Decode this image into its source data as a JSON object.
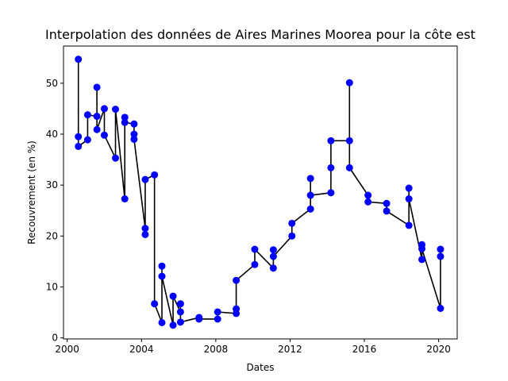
{
  "chart_data": {
    "type": "line",
    "title": "Interpolation des données de Aires Marines Moorea pour la côte est",
    "xlabel": "Dates",
    "ylabel": "Recouvrement (en %)",
    "xlim": [
      1999.8,
      2021.0
    ],
    "ylim": [
      -0.2,
      57.3
    ],
    "xticks": [
      2000,
      2004,
      2008,
      2012,
      2016,
      2020
    ],
    "yticks": [
      0,
      10,
      20,
      30,
      40,
      50
    ],
    "grid": false,
    "line_color": "#000000",
    "marker_color": "#0000ff",
    "series": [
      {
        "x": [
          2000.6,
          2000.6,
          2000.6,
          2001.1,
          2001.1,
          2001.6,
          2001.6,
          2001.6,
          2002.0,
          2002.0,
          2002.6,
          2002.6,
          2003.1,
          2003.1,
          2003.1,
          2003.6,
          2003.6,
          2003.6,
          2004.2,
          2004.2,
          2004.2,
          2004.7,
          2004.7,
          2005.1,
          2005.1,
          2005.1,
          2005.7,
          2005.7,
          2006.1,
          2006.1,
          2006.1,
          2007.1,
          2007.1,
          2008.1,
          2008.1,
          2009.1,
          2009.1,
          2009.1,
          2010.1,
          2010.1,
          2011.1,
          2011.1,
          2011.1,
          2012.1,
          2012.1,
          2013.1,
          2013.1,
          2013.1,
          2014.2,
          2014.2,
          2014.2,
          2015.2,
          2015.2,
          2015.2,
          2016.2,
          2016.2,
          2017.2,
          2017.2,
          2018.4,
          2018.4,
          2018.4,
          2019.1,
          2019.1,
          2019.1,
          2020.1,
          2020.1,
          2020.1
        ],
        "y": [
          39.5,
          54.7,
          37.6,
          38.9,
          43.8,
          43.5,
          49.2,
          40.9,
          45.0,
          39.8,
          35.3,
          44.9,
          27.3,
          43.3,
          42.3,
          42.0,
          40.0,
          39.0,
          21.5,
          20.3,
          31.1,
          32.0,
          6.7,
          3.0,
          14.1,
          12.1,
          2.5,
          8.2,
          5.1,
          6.7,
          3.1,
          4.0,
          3.7,
          3.7,
          5.1,
          4.8,
          5.7,
          11.3,
          14.4,
          17.4,
          13.7,
          17.3,
          16.0,
          20.0,
          22.5,
          25.3,
          31.3,
          28.0,
          28.5,
          33.4,
          38.7,
          38.7,
          50.1,
          33.4,
          28.0,
          26.7,
          26.4,
          24.9,
          22.1,
          29.4,
          27.3,
          15.4,
          18.3,
          17.5,
          5.8,
          16.0,
          17.4
        ]
      }
    ]
  }
}
